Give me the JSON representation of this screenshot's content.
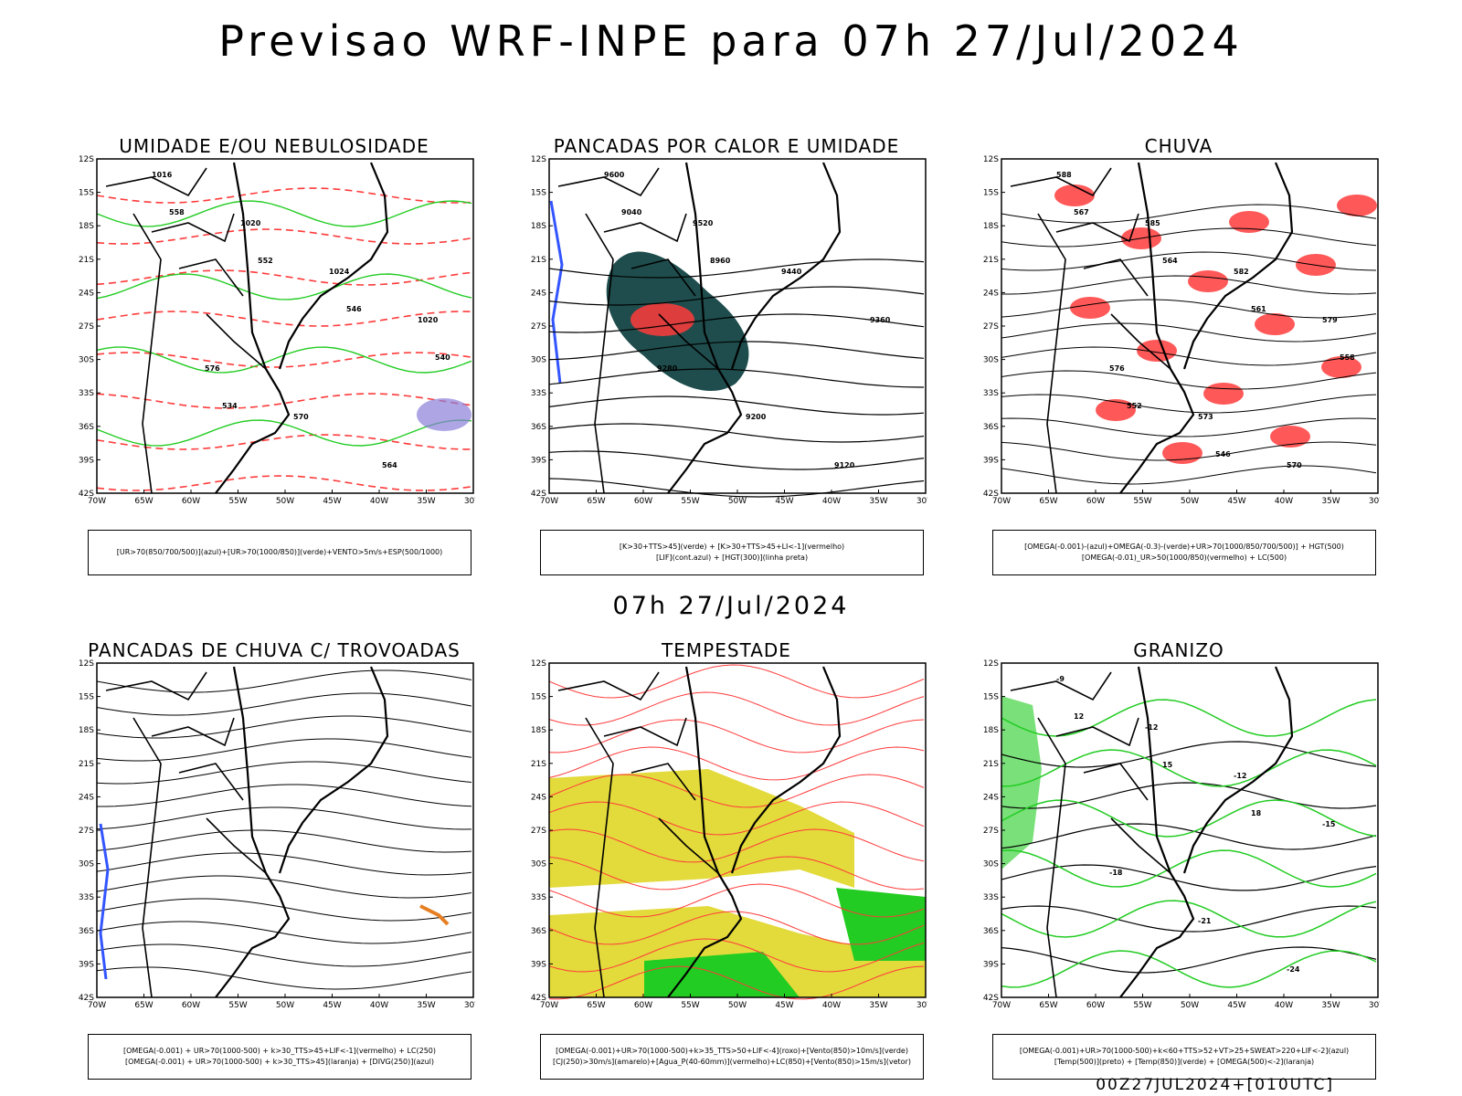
{
  "page_title": "Previsao WRF-INPE  para 07h 27/Jul/2024",
  "middle_label": "07h 27/Jul/2024",
  "run_label": "00Z27JUL2024+[010UTC]",
  "axes": {
    "lat_ticks": [
      "12S",
      "15S",
      "18S",
      "21S",
      "24S",
      "27S",
      "30S",
      "33S",
      "36S",
      "39S",
      "42S"
    ],
    "lon_ticks": [
      "70W",
      "65W",
      "60W",
      "55W",
      "50W",
      "45W",
      "40W",
      "35W",
      "30W"
    ]
  },
  "colors": {
    "red": "#ff3b3b",
    "green": "#22cc22",
    "blue": "#3355ff",
    "orange": "#e67e22",
    "yellow": "#e3da3b",
    "teal": "#1f4d4d",
    "purple": "#8a7fd8"
  },
  "chart_data": [
    {
      "type": "contour-map",
      "title": "UMIDADE E/OU NEBULOSIDADE",
      "legend_line1": "[UR>70(850/700/500)](azul)+[UR>70(1000/850)](verde)+VENTO>5m/s+ESP(500/1000)",
      "legend_line2": "",
      "contour_labels": [
        "1016",
        "1020",
        "1024",
        "1020",
        "576",
        "570",
        "564",
        "558",
        "552",
        "546",
        "540",
        "534"
      ]
    },
    {
      "type": "contour-map",
      "title": "PANCADAS POR CALOR E UMIDADE",
      "legend_line1": "[K>30+TTS>45](verde) + [K>30+TTS>45+LI<-1](vermelho)",
      "legend_line2": "[LIF](cont.azul) + [HGT(300)](linha preta)",
      "contour_labels": [
        "9600",
        "9520",
        "9440",
        "9360",
        "9280",
        "9200",
        "9120",
        "9040",
        "8960"
      ]
    },
    {
      "type": "contour-map",
      "title": "CHUVA",
      "legend_line1": "[OMEGA(-0.001)-(azul)+OMEGA(-0.3)-(verde)+UR>70(1000/850/700/500)] + HGT(500)",
      "legend_line2": "[OMEGA(-0.01)_UR>50(1000/850)(vermelho) + LC(500)",
      "contour_labels": [
        "588",
        "585",
        "582",
        "579",
        "576",
        "573",
        "570",
        "567",
        "564",
        "561",
        "558",
        "552",
        "546"
      ]
    },
    {
      "type": "contour-map",
      "title": "PANCADAS DE CHUVA C/ TROVOADAS",
      "legend_line1": "[OMEGA(-0.001) + UR>70(1000-500) + k>30_TTS>45+LIF<-1](vermelho) + LC(250)",
      "legend_line2": "[OMEGA(-0.001) + UR>70(1000-500) + k>30_TTS>45](laranja) + [DIVG(250)](azul)",
      "contour_labels": []
    },
    {
      "type": "contour-map",
      "title": "TEMPESTADE",
      "legend_line1": "[OMEGA(-0.001)+UR>70(1000-500)+k>35_TTS>50+LIF<-4](roxo)+[Vento(850)>10m/s](verde)",
      "legend_line2": "[CJ(250)>30m/s](amarelo)+[Agua_P(40-60mm)](vermelho)+LC(850)+[Vento(850)>15m/s](vetor)",
      "contour_labels": []
    },
    {
      "type": "contour-map",
      "title": "GRANIZO",
      "legend_line1": "[OMEGA(-0.001)+UR>70(1000-500)+k<60+TTS>52+VT>25+SWEAT>220+LIF<-2](azul)",
      "legend_line2": "[Temp(500)](preto) + [Temp(850)](verde) + [OMEGA(500)<-2](laranja)",
      "contour_labels": [
        "-9",
        "-12",
        "-12",
        "-15",
        "-18",
        "-21",
        "-24",
        "12",
        "15",
        "18"
      ]
    }
  ]
}
